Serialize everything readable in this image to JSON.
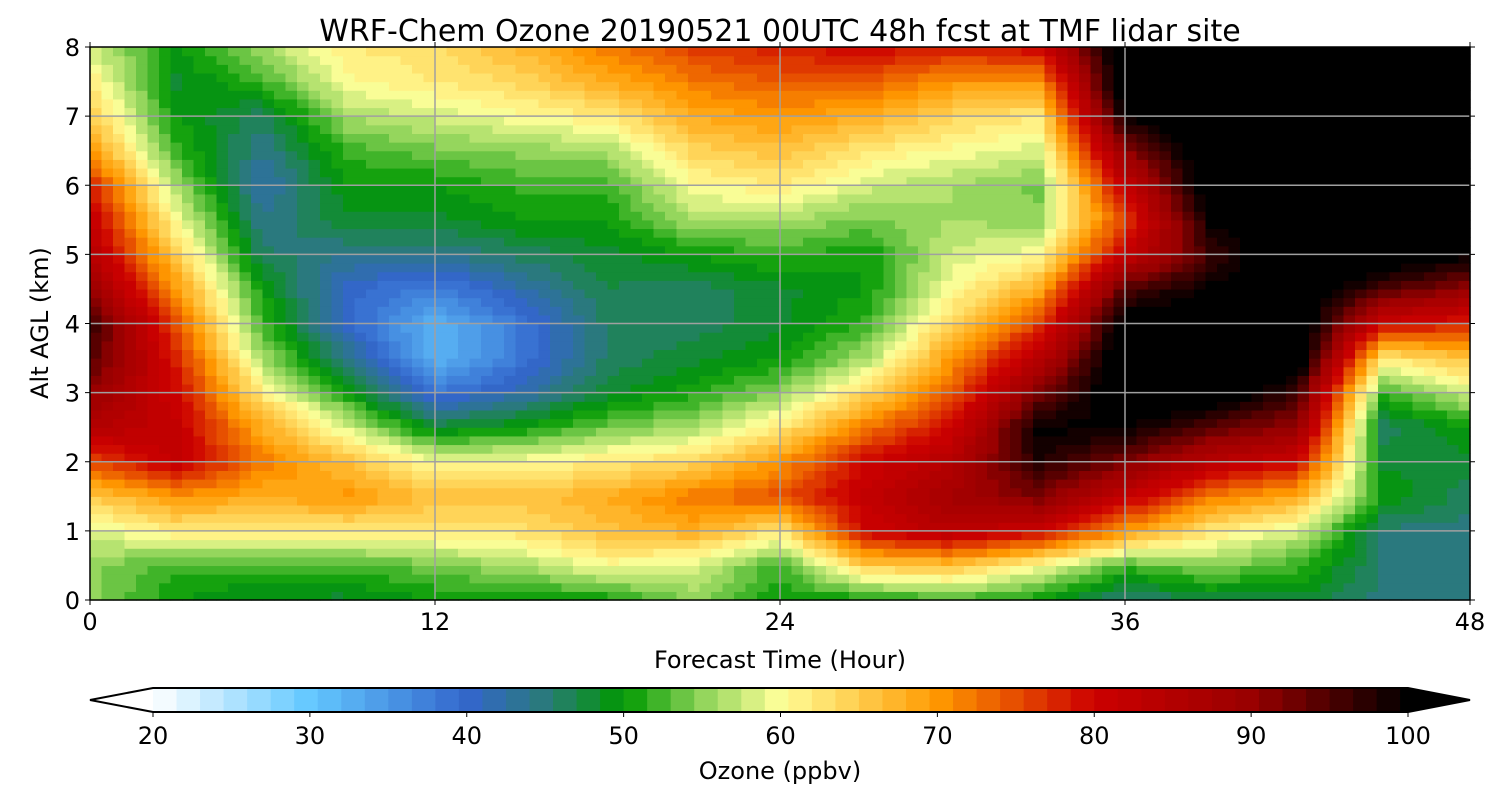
{
  "chart_data": {
    "type": "heatmap",
    "title": "WRF-Chem Ozone 20190521 00UTC 48h fcst at TMF lidar site",
    "xlabel": "Forecast Time (Hour)",
    "ylabel": "Alt AGL (km)",
    "xlim": [
      0,
      48
    ],
    "ylim": [
      0,
      8
    ],
    "xticks": [
      "0",
      "12",
      "24",
      "36",
      "48"
    ],
    "xtick_values": [
      0,
      12,
      24,
      36,
      48
    ],
    "yticks": [
      "0",
      "1",
      "2",
      "3",
      "4",
      "5",
      "6",
      "7",
      "8"
    ],
    "ytick_values": [
      0,
      1,
      2,
      3,
      4,
      5,
      6,
      7,
      8
    ],
    "grid": true,
    "x": [
      0,
      3,
      6,
      9,
      12,
      15,
      18,
      21,
      24,
      27,
      30,
      33,
      36,
      39,
      42,
      45,
      48
    ],
    "y": [
      0,
      0.5,
      1,
      1.5,
      2,
      2.5,
      3,
      3.5,
      4,
      4.5,
      5,
      5.5,
      6,
      6.5,
      7,
      7.5,
      8
    ],
    "values_by_time": [
      [
        55,
        55,
        58,
        65,
        75,
        85,
        90,
        95,
        97,
        90,
        85,
        82,
        78,
        70,
        65,
        62,
        58
      ],
      [
        50,
        52,
        62,
        70,
        82,
        82,
        80,
        78,
        75,
        70,
        65,
        60,
        56,
        52,
        50,
        48,
        50
      ],
      [
        48,
        52,
        62,
        68,
        72,
        68,
        62,
        56,
        52,
        50,
        46,
        44,
        42,
        44,
        46,
        52,
        56
      ],
      [
        48,
        52,
        62,
        70,
        66,
        58,
        50,
        44,
        40,
        40,
        44,
        48,
        50,
        52,
        56,
        60,
        62
      ],
      [
        50,
        54,
        62,
        66,
        60,
        48,
        38,
        32,
        32,
        37,
        44,
        48,
        50,
        54,
        58,
        62,
        63
      ],
      [
        50,
        56,
        63,
        66,
        60,
        50,
        42,
        38,
        38,
        42,
        46,
        50,
        52,
        55,
        60,
        64,
        67
      ],
      [
        50,
        60,
        66,
        68,
        62,
        54,
        48,
        46,
        46,
        47,
        48,
        50,
        52,
        56,
        62,
        68,
        72
      ],
      [
        55,
        58,
        68,
        72,
        64,
        56,
        51,
        48,
        46,
        46,
        50,
        56,
        60,
        64,
        68,
        72,
        76
      ],
      [
        50,
        52,
        62,
        75,
        70,
        62,
        55,
        50,
        48,
        48,
        52,
        56,
        62,
        66,
        70,
        74,
        78
      ],
      [
        50,
        65,
        80,
        82,
        80,
        72,
        64,
        56,
        52,
        50,
        50,
        54,
        58,
        62,
        68,
        74,
        80
      ],
      [
        52,
        66,
        84,
        88,
        85,
        80,
        74,
        70,
        64,
        60,
        58,
        56,
        56,
        60,
        64,
        70,
        78
      ],
      [
        50,
        60,
        80,
        92,
        98,
        100,
        92,
        84,
        76,
        68,
        60,
        55,
        54,
        58,
        62,
        70,
        80
      ],
      [
        45,
        52,
        70,
        82,
        92,
        100,
        104,
        104,
        102,
        95,
        82,
        76,
        82,
        90,
        100,
        104,
        104
      ],
      [
        47,
        55,
        62,
        72,
        84,
        94,
        104,
        104,
        104,
        100,
        96,
        100,
        104,
        104,
        104,
        104,
        104
      ],
      [
        48,
        52,
        58,
        68,
        80,
        90,
        96,
        104,
        104,
        104,
        104,
        104,
        104,
        104,
        104,
        104,
        104
      ],
      [
        45,
        45,
        45,
        50,
        48,
        46,
        52,
        62,
        80,
        95,
        104,
        104,
        104,
        104,
        104,
        104,
        104
      ],
      [
        45,
        45,
        45,
        46,
        48,
        50,
        58,
        66,
        78,
        90,
        100,
        104,
        104,
        104,
        104,
        104,
        104
      ]
    ],
    "colorbar": {
      "label": "Ozone  (ppbv)",
      "range": [
        20,
        100
      ],
      "extend": "both",
      "ticks": [
        "20",
        "30",
        "40",
        "50",
        "60",
        "70",
        "80",
        "90",
        "100"
      ],
      "tick_values": [
        20,
        30,
        40,
        50,
        60,
        70,
        80,
        90,
        100
      ],
      "level_step": 1.5,
      "color_stops": [
        {
          "v": 20,
          "c": "#ffffff"
        },
        {
          "v": 30,
          "c": "#63c8ff"
        },
        {
          "v": 40,
          "c": "#3366cc"
        },
        {
          "v": 45,
          "c": "#2a7a7a"
        },
        {
          "v": 50,
          "c": "#009900"
        },
        {
          "v": 55,
          "c": "#8fd45a"
        },
        {
          "v": 60,
          "c": "#ffff99"
        },
        {
          "v": 70,
          "c": "#ff9900"
        },
        {
          "v": 80,
          "c": "#cc0000"
        },
        {
          "v": 90,
          "c": "#990000"
        },
        {
          "v": 100,
          "c": "#000000"
        }
      ]
    }
  }
}
